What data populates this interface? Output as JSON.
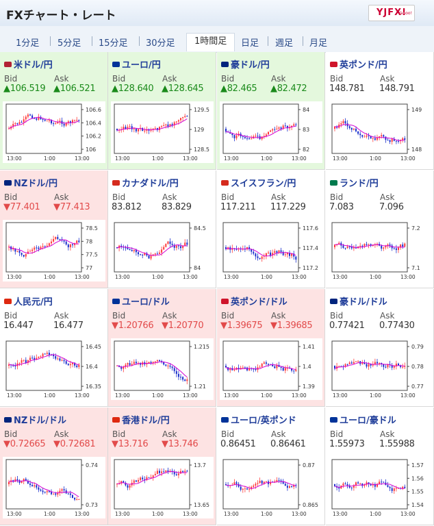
{
  "header": {
    "title": "FXチャート・レート",
    "logo": "YJFX!",
    "logo_sub": "Yahoo!"
  },
  "tabs": [
    "1分足",
    "5分足",
    "15分足",
    "30分足",
    "1時間足",
    "日足",
    "週足",
    "月足"
  ],
  "active_tab": "1時間足",
  "labels": {
    "bid": "Bid",
    "ask": "Ask"
  },
  "colors": {
    "up_bg": "#e4f8dd",
    "down_bg": "#fde3e3",
    "up_text": "#1a8a1a",
    "down_text": "#e24a4a",
    "link": "#1f3d99",
    "candle_up": "#ff3b3b",
    "candle_down": "#1a2fcc",
    "ma": "#d300d3"
  },
  "xticks": [
    "13:00",
    "1:00",
    "13:00"
  ],
  "pairs": [
    {
      "name": "米ドル/円",
      "dir": "up",
      "arrow": "▲",
      "bid": "106.519",
      "ask": "106.521",
      "ticks": [
        "106.6",
        "106.4",
        "106.2",
        "106"
      ],
      "flag": "#b22234"
    },
    {
      "name": "ユーロ/円",
      "dir": "up",
      "arrow": "▲",
      "bid": "128.640",
      "ask": "128.645",
      "ticks": [
        "129.5",
        "129",
        "128.5"
      ],
      "flag": "#003399"
    },
    {
      "name": "豪ドル/円",
      "dir": "up",
      "arrow": "▲",
      "bid": "82.465",
      "ask": "82.472",
      "ticks": [
        "84",
        "83",
        "82"
      ],
      "flag": "#00247d"
    },
    {
      "name": "英ポンド/円",
      "dir": "none",
      "arrow": "",
      "bid": "148.781",
      "ask": "148.791",
      "ticks": [
        "149",
        "148"
      ],
      "flag": "#cf142b"
    },
    {
      "name": "NZドル/円",
      "dir": "down",
      "arrow": "▼",
      "bid": "77.401",
      "ask": "77.413",
      "ticks": [
        "78.5",
        "78",
        "77.5",
        "77"
      ],
      "flag": "#00247d"
    },
    {
      "name": "カナダドル/円",
      "dir": "none",
      "arrow": "",
      "bid": "83.812",
      "ask": "83.829",
      "ticks": [
        "84.5",
        "84"
      ],
      "flag": "#d52b1e"
    },
    {
      "name": "スイスフラン/円",
      "dir": "none",
      "arrow": "",
      "bid": "117.211",
      "ask": "117.229",
      "ticks": [
        "117.6",
        "117.4",
        "117.2"
      ],
      "flag": "#d52b1e"
    },
    {
      "name": "ランド/円",
      "dir": "none",
      "arrow": "",
      "bid": "7.083",
      "ask": "7.096",
      "ticks": [
        "7.2",
        "7.1"
      ],
      "flag": "#007a4d"
    },
    {
      "name": "人民元/円",
      "dir": "none",
      "arrow": "",
      "bid": "16.447",
      "ask": "16.477",
      "ticks": [
        "16.45",
        "16.4",
        "16.35"
      ],
      "flag": "#de2910"
    },
    {
      "name": "ユーロ/ドル",
      "dir": "down",
      "arrow": "▼",
      "bid": "1.20766",
      "ask": "1.20770",
      "ticks": [
        "1.215",
        "1.21"
      ],
      "flag": "#003399"
    },
    {
      "name": "英ポンド/ドル",
      "dir": "down",
      "arrow": "▼",
      "bid": "1.39675",
      "ask": "1.39685",
      "ticks": [
        "1.41",
        "1.4",
        "1.39"
      ],
      "flag": "#cf142b"
    },
    {
      "name": "豪ドル/ドル",
      "dir": "none",
      "arrow": "",
      "bid": "0.77421",
      "ask": "0.77430",
      "ticks": [
        "0.79",
        "0.78",
        "0.77"
      ],
      "flag": "#00247d"
    },
    {
      "name": "NZドル/ドル",
      "dir": "down",
      "arrow": "▼",
      "bid": "0.72665",
      "ask": "0.72681",
      "ticks": [
        "0.74",
        "0.73"
      ],
      "flag": "#00247d"
    },
    {
      "name": "香港ドル/円",
      "dir": "down",
      "arrow": "▼",
      "bid": "13.716",
      "ask": "13.746",
      "ticks": [
        "13.7",
        "13.65"
      ],
      "flag": "#de2910"
    },
    {
      "name": "ユーロ/英ポンド",
      "dir": "none",
      "arrow": "",
      "bid": "0.86451",
      "ask": "0.86461",
      "ticks": [
        "0.87",
        "0.865"
      ],
      "flag": "#003399"
    },
    {
      "name": "ユーロ/豪ドル",
      "dir": "none",
      "arrow": "",
      "bid": "1.55973",
      "ask": "1.55988",
      "ticks": [
        "1.57",
        "1.56",
        "1.55",
        "1.54"
      ],
      "flag": "#003399"
    }
  ]
}
